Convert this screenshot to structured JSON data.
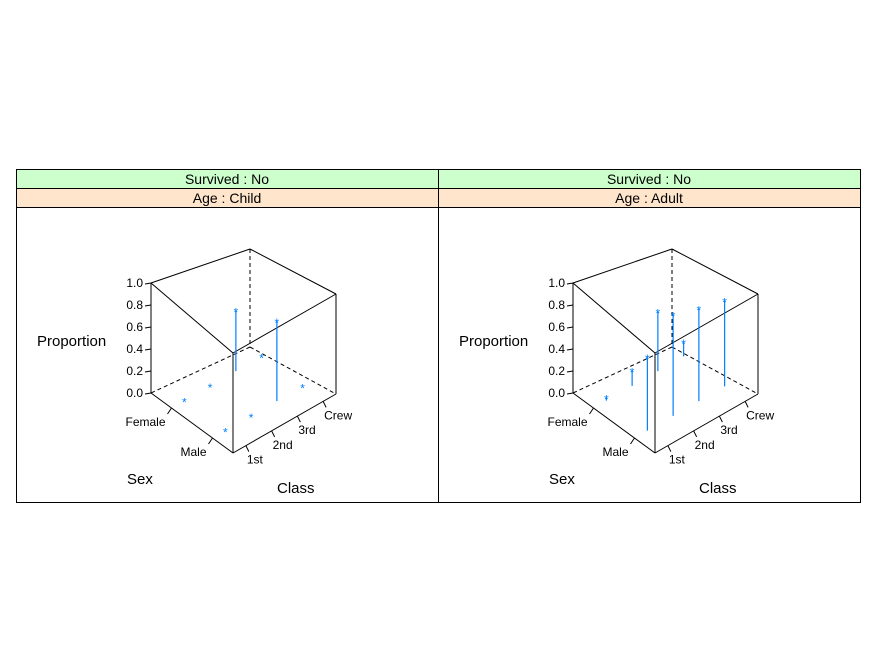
{
  "colors": {
    "strip_top": "#ccffcc",
    "strip_bottom": "#ffe5cc",
    "spike": "#0080ff",
    "box": "#000000"
  },
  "chart_data": {
    "type": "cloud",
    "zlabel": "Proportion",
    "xlabel": "Class",
    "ylabel": "Sex",
    "zlim": [
      0,
      1
    ],
    "z_ticks": [
      "0.0",
      "0.2",
      "0.4",
      "0.6",
      "0.8",
      "1.0"
    ],
    "x_categories": [
      "1st",
      "2nd",
      "3rd",
      "Crew"
    ],
    "y_categories": [
      "Male",
      "Female"
    ],
    "panels": [
      {
        "strip_top": "Survived : No",
        "strip_bottom": "Age : Child",
        "points": [
          {
            "class": "1st",
            "sex": "Male",
            "value": 0.0
          },
          {
            "class": "2nd",
            "sex": "Male",
            "value": 0.0
          },
          {
            "class": "3rd",
            "sex": "Male",
            "value": 0.73
          },
          {
            "class": "Crew",
            "sex": "Male",
            "value": 0.0
          },
          {
            "class": "1st",
            "sex": "Female",
            "value": 0.0
          },
          {
            "class": "2nd",
            "sex": "Female",
            "value": 0.0
          },
          {
            "class": "3rd",
            "sex": "Female",
            "value": 0.55
          },
          {
            "class": "Crew",
            "sex": "Female",
            "value": 0.0
          }
        ]
      },
      {
        "strip_top": "Survived : No",
        "strip_bottom": "Age : Adult",
        "points": [
          {
            "class": "1st",
            "sex": "Male",
            "value": 0.67
          },
          {
            "class": "2nd",
            "sex": "Male",
            "value": 0.92
          },
          {
            "class": "3rd",
            "sex": "Male",
            "value": 0.84
          },
          {
            "class": "Crew",
            "sex": "Male",
            "value": 0.78
          },
          {
            "class": "1st",
            "sex": "Female",
            "value": 0.03
          },
          {
            "class": "2nd",
            "sex": "Female",
            "value": 0.14
          },
          {
            "class": "3rd",
            "sex": "Female",
            "value": 0.54
          },
          {
            "class": "Crew",
            "sex": "Female",
            "value": 0.13
          }
        ]
      }
    ]
  }
}
